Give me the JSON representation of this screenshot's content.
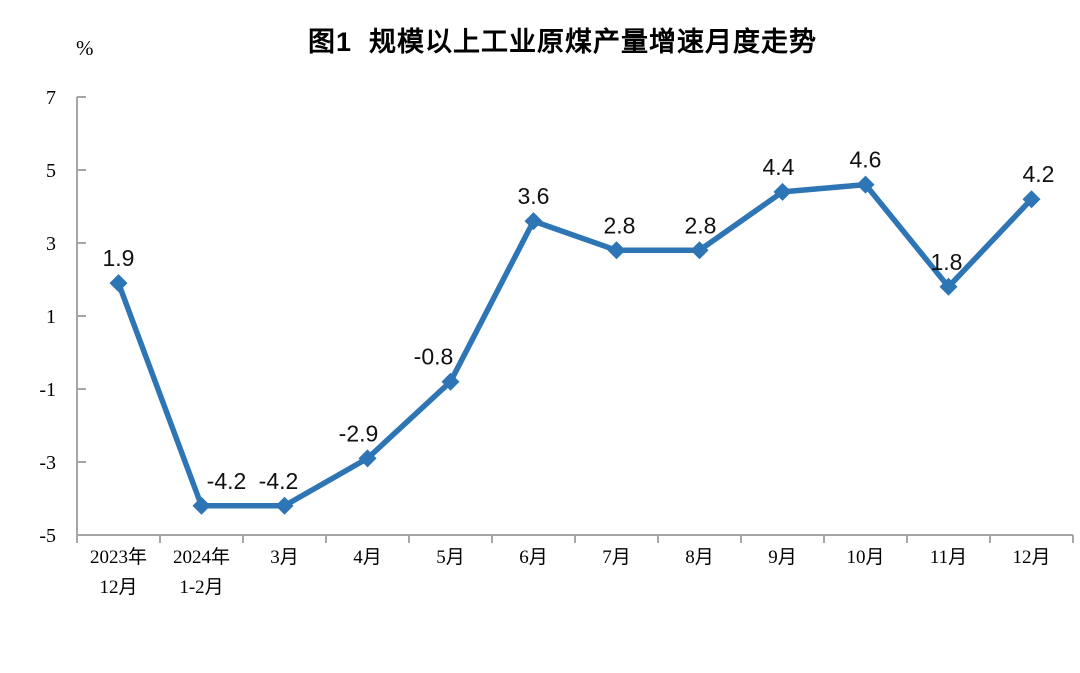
{
  "chart_data": {
    "type": "line",
    "title": "图1  规模以上工业原煤产量增速月度走势",
    "unit_label": "%",
    "categories": [
      [
        "2023年",
        "12月"
      ],
      [
        "2024年",
        "1-2月"
      ],
      [
        "3月"
      ],
      [
        "4月"
      ],
      [
        "5月"
      ],
      [
        "6月"
      ],
      [
        "7月"
      ],
      [
        "8月"
      ],
      [
        "9月"
      ],
      [
        "10月"
      ],
      [
        "11月"
      ],
      [
        "12月"
      ]
    ],
    "values": [
      1.9,
      -4.2,
      -4.2,
      -2.9,
      -0.8,
      3.6,
      2.8,
      2.8,
      4.4,
      4.6,
      1.8,
      4.2
    ],
    "data_labels": [
      "1.9",
      "-4.2",
      "-4.2",
      "-2.9",
      "-0.8",
      "3.6",
      "2.8",
      "2.8",
      "4.4",
      "4.6",
      "1.8",
      "4.2"
    ],
    "xlabel": "",
    "ylabel": "%",
    "ylim": [
      -5,
      7
    ],
    "y_ticks": [
      7,
      5,
      3,
      1,
      -1,
      -3,
      -5
    ],
    "grid": false,
    "legend": "none",
    "marker": "diamond",
    "line_color": "#2E75B6",
    "axis_color": "#A6A6A6",
    "label_color": "#111111"
  }
}
